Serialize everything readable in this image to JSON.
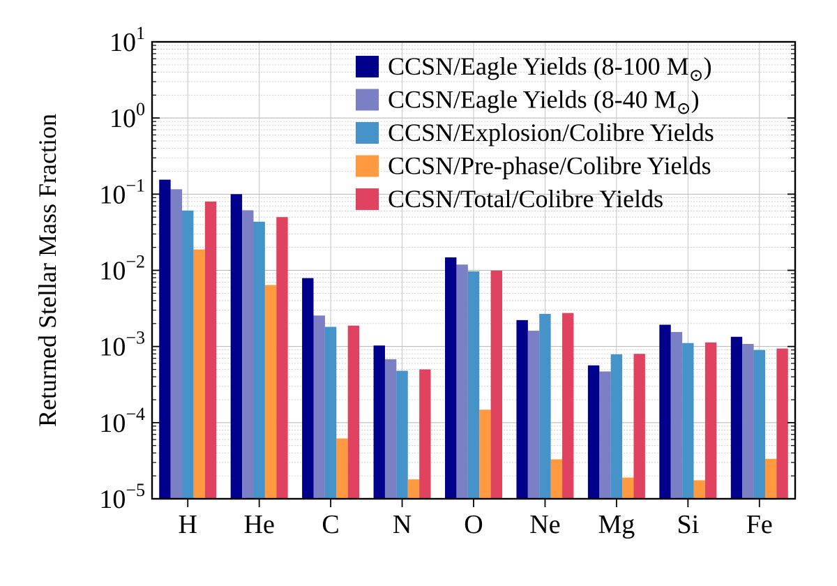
{
  "chart_data": {
    "type": "bar",
    "categories": [
      "H",
      "He",
      "C",
      "N",
      "O",
      "Ne",
      "Mg",
      "Si",
      "Fe"
    ],
    "ylabel": "Returned Stellar Mass Fraction",
    "xlabel": "",
    "yscale": "log",
    "ylim": [
      1e-05,
      10
    ],
    "ytick_labels": [
      {
        "base": "10",
        "exp": "−5"
      },
      {
        "base": "10",
        "exp": "−4"
      },
      {
        "base": "10",
        "exp": "−3"
      },
      {
        "base": "10",
        "exp": "−2"
      },
      {
        "base": "10",
        "exp": "−1"
      },
      {
        "base": "10",
        "exp": "0"
      },
      {
        "base": "10",
        "exp": "1"
      }
    ],
    "grid": true,
    "legend_position": "top-right",
    "series": [
      {
        "name": "CCSN/Eagle Yields (8-100 M",
        "name_sub": "⊙",
        "name_tail": ")",
        "color": "#00008b",
        "values": [
          0.155,
          0.1,
          0.0079,
          0.00103,
          0.0148,
          0.00222,
          0.000565,
          0.00193,
          0.00134
        ]
      },
      {
        "name": "CCSN/Eagle Yields (8-40 M",
        "name_sub": "⊙",
        "name_tail": ")",
        "color": "#7b7fc4",
        "values": [
          0.116,
          0.0615,
          0.00255,
          0.00068,
          0.0119,
          0.00161,
          0.00047,
          0.00155,
          0.00108
        ]
      },
      {
        "name": "CCSN/Explosion/Colibre Yields",
        "name_sub": "",
        "name_tail": "",
        "color": "#4593c9",
        "values": [
          0.061,
          0.0435,
          0.00181,
          0.00048,
          0.0097,
          0.00268,
          0.00079,
          0.00111,
          0.0009
        ]
      },
      {
        "name": "CCSN/Pre-phase/Colibre Yields",
        "name_sub": "",
        "name_tail": "",
        "color": "#ff9a40",
        "values": [
          0.0188,
          0.0064,
          6.2e-05,
          1.8e-05,
          0.000148,
          3.3e-05,
          1.9e-05,
          1.75e-05,
          3.35e-05
        ]
      },
      {
        "name": "CCSN/Total/Colibre Yields",
        "name_sub": "",
        "name_tail": "",
        "color": "#e0435f",
        "values": [
          0.08,
          0.05,
          0.00188,
          0.0005,
          0.0099,
          0.00275,
          0.0008,
          0.00113,
          0.00094
        ]
      }
    ]
  }
}
